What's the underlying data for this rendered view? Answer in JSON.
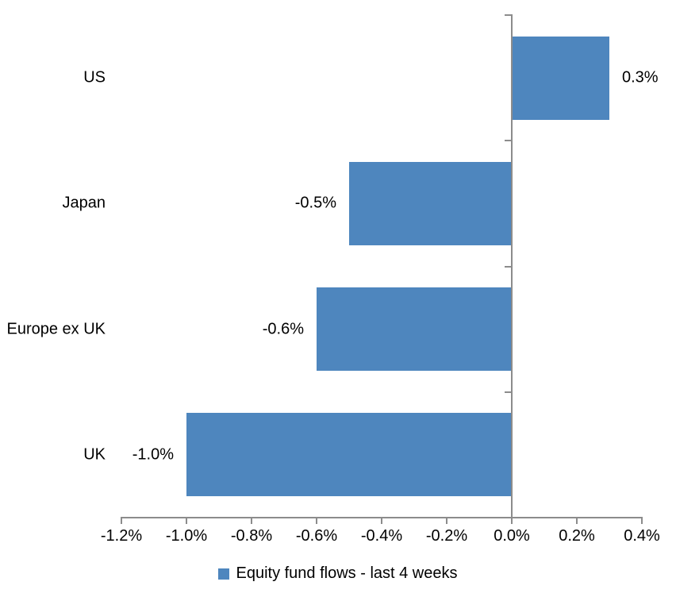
{
  "chart_data": {
    "type": "bar",
    "orientation": "horizontal",
    "title": "",
    "categories": [
      "US",
      "Japan",
      "Europe ex UK",
      "UK"
    ],
    "values": [
      0.3,
      -0.5,
      -0.6,
      -1.0
    ],
    "value_labels": [
      "0.3%",
      "-0.5%",
      "-0.6%",
      "-1.0%"
    ],
    "xlim": [
      -1.2,
      0.4
    ],
    "x_tick_step": 0.2,
    "x_tick_labels": [
      "-1.2%",
      "-1.0%",
      "-0.8%",
      "-0.6%",
      "-0.4%",
      "-0.2%",
      "0.0%",
      "0.2%",
      "0.4%"
    ],
    "grid": false,
    "legend": {
      "position": "bottom",
      "label": "Equity fund flows - last 4 weeks"
    },
    "colors": {
      "bar": "#4E86BE",
      "axis": "#8C8C8C",
      "text": "#000000",
      "background": "#FFFFFF"
    }
  }
}
